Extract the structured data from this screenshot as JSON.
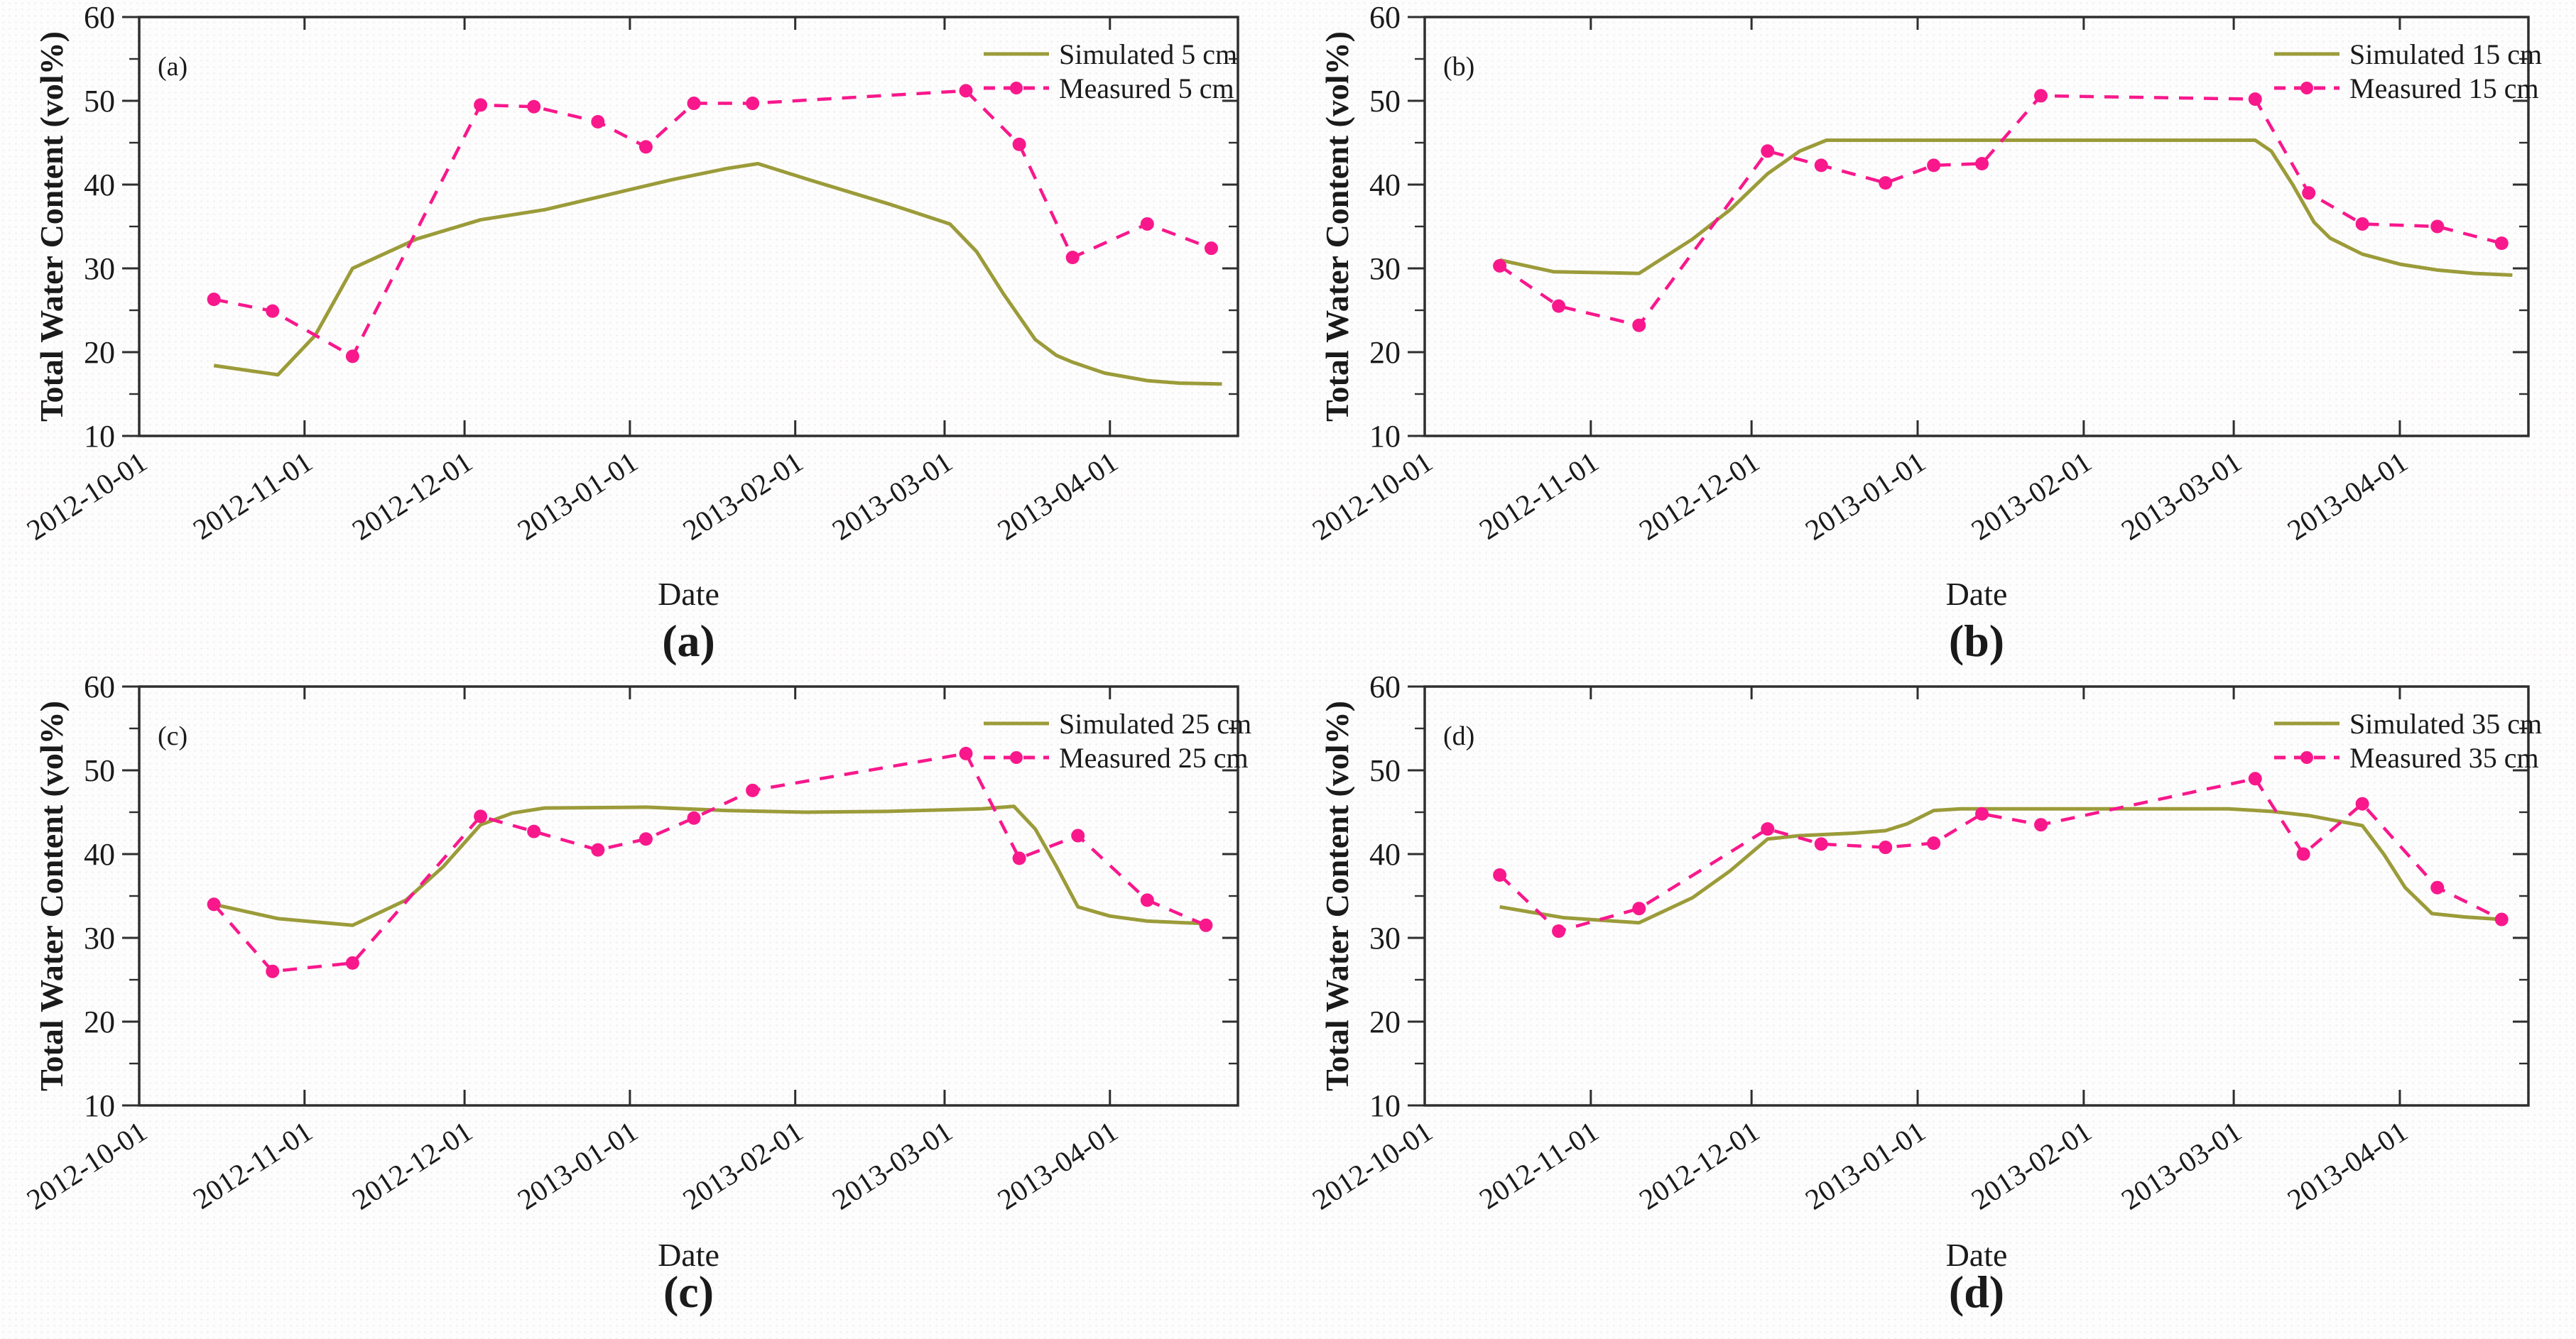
{
  "figure": {
    "caption_letters": [
      "(a)",
      "(b)",
      "(c)",
      "(d)"
    ]
  },
  "colors": {
    "simulated": "#9b9b3a",
    "measured": "#f8188c",
    "axis": "#2e2e2e",
    "text": "#1a1a1a"
  },
  "chart_data": [
    {
      "type": "line",
      "panel_letter": "(a)",
      "caption": "(a)",
      "xlabel": "Date",
      "ylabel": "Total Water Content (vol%)",
      "ylim": [
        10,
        60
      ],
      "y_major_ticks": [
        10,
        20,
        30,
        40,
        50,
        60
      ],
      "y_minor_step": 5,
      "x_axis_note": "x values are days since 2012-10-01",
      "xlim_days": [
        0,
        206
      ],
      "x_ticks": [
        {
          "day": 0,
          "label": "2012-10-01"
        },
        {
          "day": 31,
          "label": "2012-11-01"
        },
        {
          "day": 61,
          "label": "2012-12-01"
        },
        {
          "day": 92,
          "label": "2013-01-01"
        },
        {
          "day": 123,
          "label": "2013-02-01"
        },
        {
          "day": 151,
          "label": "2013-03-01"
        },
        {
          "day": 182,
          "label": "2013-04-01"
        }
      ],
      "legend_position": "top-right",
      "grid": false,
      "series": [
        {
          "name": "Simulated 5 cm",
          "style": "solid",
          "color": "#9b9b3a",
          "points": [
            [
              14,
              18.4
            ],
            [
              26,
              17.3
            ],
            [
              33,
              22
            ],
            [
              40,
              30
            ],
            [
              52,
              33.5
            ],
            [
              64,
              35.8
            ],
            [
              76,
              37.0
            ],
            [
              88,
              38.8
            ],
            [
              100,
              40.6
            ],
            [
              110,
              41.9
            ],
            [
              116,
              42.5
            ],
            [
              126,
              40.5
            ],
            [
              141,
              37.6
            ],
            [
              152,
              35.3
            ],
            [
              157,
              32.0
            ],
            [
              162,
              27.0
            ],
            [
              168,
              21.5
            ],
            [
              172,
              19.6
            ],
            [
              175,
              18.8
            ],
            [
              181,
              17.5
            ],
            [
              189,
              16.6
            ],
            [
              195,
              16.3
            ],
            [
              203,
              16.2
            ]
          ]
        },
        {
          "name": "Measured 5 cm",
          "style": "dashed-markers",
          "color": "#f8188c",
          "points": [
            [
              14,
              26.3
            ],
            [
              25,
              24.9
            ],
            [
              40,
              19.5
            ],
            [
              64,
              49.5
            ],
            [
              74,
              49.3
            ],
            [
              86,
              47.5
            ],
            [
              95,
              44.5
            ],
            [
              104,
              49.7
            ],
            [
              115,
              49.7
            ],
            [
              155,
              51.2
            ],
            [
              165,
              44.8
            ],
            [
              175,
              31.3
            ],
            [
              189,
              35.3
            ],
            [
              201,
              32.4
            ]
          ]
        }
      ]
    },
    {
      "type": "line",
      "panel_letter": "(b)",
      "caption": "(b)",
      "xlabel": "Date",
      "ylabel": "Total Water Content (vol%)",
      "ylim": [
        10,
        60
      ],
      "y_major_ticks": [
        10,
        20,
        30,
        40,
        50,
        60
      ],
      "y_minor_step": 5,
      "x_axis_note": "x values are days since 2012-10-01",
      "xlim_days": [
        0,
        206
      ],
      "x_ticks": [
        {
          "day": 0,
          "label": "2012-10-01"
        },
        {
          "day": 31,
          "label": "2012-11-01"
        },
        {
          "day": 61,
          "label": "2012-12-01"
        },
        {
          "day": 92,
          "label": "2013-01-01"
        },
        {
          "day": 123,
          "label": "2013-02-01"
        },
        {
          "day": 151,
          "label": "2013-03-01"
        },
        {
          "day": 182,
          "label": "2013-04-01"
        }
      ],
      "legend_position": "top-right",
      "grid": false,
      "series": [
        {
          "name": "Simulated 15 cm",
          "style": "solid",
          "color": "#9b9b3a",
          "points": [
            [
              14,
              31.0
            ],
            [
              24,
              29.6
            ],
            [
              40,
              29.4
            ],
            [
              50,
              33.5
            ],
            [
              57,
              37.0
            ],
            [
              64,
              41.3
            ],
            [
              70,
              44.0
            ],
            [
              75,
              45.3
            ],
            [
              155,
              45.3
            ],
            [
              158,
              44.0
            ],
            [
              162,
              40.0
            ],
            [
              166,
              35.5
            ],
            [
              169,
              33.6
            ],
            [
              175,
              31.7
            ],
            [
              182,
              30.5
            ],
            [
              189,
              29.8
            ],
            [
              196,
              29.4
            ],
            [
              203,
              29.2
            ]
          ]
        },
        {
          "name": "Measured 15 cm",
          "style": "dashed-markers",
          "color": "#f8188c",
          "points": [
            [
              14,
              30.3
            ],
            [
              25,
              25.5
            ],
            [
              40,
              23.2
            ],
            [
              64,
              44.0
            ],
            [
              74,
              42.3
            ],
            [
              86,
              40.2
            ],
            [
              95,
              42.3
            ],
            [
              104,
              42.5
            ],
            [
              115,
              50.6
            ],
            [
              155,
              50.2
            ],
            [
              165,
              39.0
            ],
            [
              175,
              35.3
            ],
            [
              189,
              35.0
            ],
            [
              201,
              33.0
            ]
          ]
        }
      ]
    },
    {
      "type": "line",
      "panel_letter": "(c)",
      "caption": "(c)",
      "xlabel": "Date",
      "ylabel": "Total Water Content (vol%)",
      "ylim": [
        10,
        60
      ],
      "y_major_ticks": [
        10,
        20,
        30,
        40,
        50,
        60
      ],
      "y_minor_step": 5,
      "x_axis_note": "x values are days since 2012-10-01",
      "xlim_days": [
        0,
        206
      ],
      "x_ticks": [
        {
          "day": 0,
          "label": "2012-10-01"
        },
        {
          "day": 31,
          "label": "2012-11-01"
        },
        {
          "day": 61,
          "label": "2012-12-01"
        },
        {
          "day": 92,
          "label": "2013-01-01"
        },
        {
          "day": 123,
          "label": "2013-02-01"
        },
        {
          "day": 151,
          "label": "2013-03-01"
        },
        {
          "day": 182,
          "label": "2013-04-01"
        }
      ],
      "legend_position": "top-right",
      "grid": false,
      "series": [
        {
          "name": "Simulated 25 cm",
          "style": "solid",
          "color": "#9b9b3a",
          "points": [
            [
              14,
              34.0
            ],
            [
              26,
              32.3
            ],
            [
              40,
              31.5
            ],
            [
              50,
              34.5
            ],
            [
              57,
              38.5
            ],
            [
              64,
              43.5
            ],
            [
              70,
              44.9
            ],
            [
              76,
              45.5
            ],
            [
              95,
              45.6
            ],
            [
              110,
              45.2
            ],
            [
              125,
              45.0
            ],
            [
              140,
              45.1
            ],
            [
              152,
              45.3
            ],
            [
              158,
              45.4
            ],
            [
              164,
              45.7
            ],
            [
              168,
              43.0
            ],
            [
              172,
              38.5
            ],
            [
              176,
              33.7
            ],
            [
              182,
              32.6
            ],
            [
              189,
              32.0
            ],
            [
              196,
              31.8
            ],
            [
              201,
              31.7
            ]
          ]
        },
        {
          "name": "Measured 25 cm",
          "style": "dashed-markers",
          "color": "#f8188c",
          "points": [
            [
              14,
              34.0
            ],
            [
              25,
              26.0
            ],
            [
              40,
              27.0
            ],
            [
              64,
              44.5
            ],
            [
              74,
              42.7
            ],
            [
              86,
              40.5
            ],
            [
              95,
              41.8
            ],
            [
              104,
              44.3
            ],
            [
              115,
              47.6
            ],
            [
              155,
              52.0
            ],
            [
              165,
              39.5
            ],
            [
              176,
              42.2
            ],
            [
              189,
              34.5
            ],
            [
              200,
              31.5
            ]
          ]
        }
      ]
    },
    {
      "type": "line",
      "panel_letter": "(d)",
      "caption": "(d)",
      "xlabel": "Date",
      "ylabel": "Total Water Content (vol%)",
      "ylim": [
        10,
        60
      ],
      "y_major_ticks": [
        10,
        20,
        30,
        40,
        50,
        60
      ],
      "y_minor_step": 5,
      "x_axis_note": "x values are days since 2012-10-01",
      "xlim_days": [
        0,
        206
      ],
      "x_ticks": [
        {
          "day": 0,
          "label": "2012-10-01"
        },
        {
          "day": 31,
          "label": "2012-11-01"
        },
        {
          "day": 61,
          "label": "2012-12-01"
        },
        {
          "day": 92,
          "label": "2013-01-01"
        },
        {
          "day": 123,
          "label": "2013-02-01"
        },
        {
          "day": 151,
          "label": "2013-03-01"
        },
        {
          "day": 182,
          "label": "2013-04-01"
        }
      ],
      "legend_position": "top-right",
      "grid": false,
      "series": [
        {
          "name": "Simulated 35 cm",
          "style": "solid",
          "color": "#9b9b3a",
          "points": [
            [
              14,
              33.7
            ],
            [
              26,
              32.4
            ],
            [
              40,
              31.8
            ],
            [
              50,
              34.8
            ],
            [
              57,
              38.0
            ],
            [
              64,
              41.8
            ],
            [
              70,
              42.2
            ],
            [
              80,
              42.5
            ],
            [
              86,
              42.8
            ],
            [
              90,
              43.6
            ],
            [
              95,
              45.2
            ],
            [
              100,
              45.4
            ],
            [
              150,
              45.4
            ],
            [
              158,
              45.1
            ],
            [
              165,
              44.6
            ],
            [
              170,
              44.0
            ],
            [
              175,
              43.4
            ],
            [
              179,
              40.0
            ],
            [
              183,
              36.0
            ],
            [
              188,
              32.9
            ],
            [
              194,
              32.5
            ],
            [
              201,
              32.2
            ]
          ]
        },
        {
          "name": "Measured 35 cm",
          "style": "dashed-markers",
          "color": "#f8188c",
          "points": [
            [
              14,
              37.5
            ],
            [
              25,
              30.8
            ],
            [
              40,
              33.5
            ],
            [
              64,
              43.0
            ],
            [
              74,
              41.2
            ],
            [
              86,
              40.8
            ],
            [
              95,
              41.3
            ],
            [
              104,
              44.8
            ],
            [
              115,
              43.5
            ],
            [
              155,
              49.0
            ],
            [
              164,
              40.0
            ],
            [
              175,
              46.0
            ],
            [
              189,
              36.0
            ],
            [
              201,
              32.2
            ]
          ]
        }
      ]
    }
  ]
}
